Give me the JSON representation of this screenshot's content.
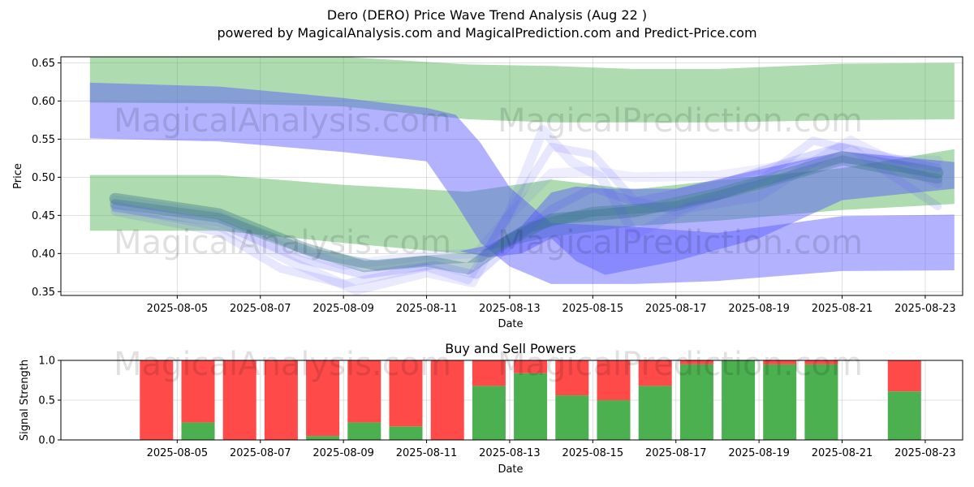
{
  "title": "Dero (DERO) Price Wave Trend Analysis (Aug 22 )",
  "subtitle": "powered by MagicalAnalysis.com and MagicalPrediction.com and Predict-Price.com",
  "watermarks": [
    "MagicalAnalysis.com",
    "MagicalPrediction.com"
  ],
  "colors": {
    "green": "#4caf50",
    "red": "#ff4a4a",
    "blue": "#5555ff",
    "teal": "#2f6f7f",
    "grid": "#b0b0b0"
  },
  "chart_data": [
    {
      "type": "area",
      "name": "price-wave",
      "xlabel": "Date",
      "ylabel": "Price",
      "ylim": [
        0.345,
        0.658
      ],
      "yticks": [
        "0.35",
        "0.40",
        "0.45",
        "0.50",
        "0.55",
        "0.60",
        "0.65"
      ],
      "ytick_values": [
        0.35,
        0.4,
        0.45,
        0.5,
        0.55,
        0.6,
        0.65
      ],
      "xticks": [
        "2025-08-05",
        "2025-08-07",
        "2025-08-09",
        "2025-08-11",
        "2025-08-13",
        "2025-08-15",
        "2025-08-17",
        "2025-08-19",
        "2025-08-21",
        "2025-08-23"
      ],
      "xtick_days": [
        5,
        7,
        9,
        11,
        13,
        15,
        17,
        19,
        21,
        23
      ],
      "xlim_days": [
        2.2,
        23.9
      ],
      "grid": true,
      "bands": [
        {
          "name": "upper-green-band",
          "color": "green",
          "opacity": 0.45,
          "x": [
            2.9,
            6,
            9,
            12,
            14,
            16,
            18,
            21,
            23.7
          ],
          "upper": [
            0.658,
            0.658,
            0.658,
            0.648,
            0.646,
            0.642,
            0.642,
            0.649,
            0.65
          ],
          "lower": [
            0.598,
            0.597,
            0.593,
            0.576,
            0.572,
            0.572,
            0.572,
            0.575,
            0.576
          ]
        },
        {
          "name": "lower-green-band",
          "color": "green",
          "opacity": 0.45,
          "x": [
            2.9,
            6,
            9,
            12,
            14,
            16,
            18,
            21,
            23.7
          ],
          "upper": [
            0.503,
            0.503,
            0.49,
            0.481,
            0.497,
            0.484,
            0.496,
            0.512,
            0.537
          ],
          "lower": [
            0.43,
            0.43,
            0.414,
            0.399,
            0.422,
            0.436,
            0.443,
            0.457,
            0.465
          ]
        },
        {
          "name": "blue-decline-band",
          "color": "blue",
          "opacity": 0.45,
          "x": [
            2.9,
            6,
            9,
            11,
            11.7,
            12.3,
            13,
            14,
            16,
            18,
            21,
            23.7
          ],
          "upper": [
            0.624,
            0.619,
            0.604,
            0.591,
            0.582,
            0.545,
            0.487,
            0.44,
            0.435,
            0.427,
            0.449,
            0.451
          ],
          "lower": [
            0.551,
            0.547,
            0.533,
            0.521,
            0.466,
            0.414,
            0.383,
            0.36,
            0.36,
            0.364,
            0.377,
            0.378
          ]
        },
        {
          "name": "blue-rise-band",
          "color": "blue",
          "opacity": 0.45,
          "x": [
            11.8,
            12.5,
            13.3,
            14,
            14.6,
            15.3,
            17,
            19,
            21,
            23.7
          ],
          "upper": [
            0.403,
            0.411,
            0.437,
            0.48,
            0.488,
            0.485,
            0.485,
            0.51,
            0.534,
            0.52
          ],
          "lower": [
            0.403,
            0.395,
            0.4,
            0.42,
            0.39,
            0.372,
            0.39,
            0.42,
            0.47,
            0.485
          ]
        }
      ],
      "waves": [
        {
          "color": "teal",
          "opacity": 0.35,
          "width": 14,
          "points": [
            [
              3.5,
              0.472
            ],
            [
              6,
              0.452
            ],
            [
              8,
              0.408
            ],
            [
              9.5,
              0.383
            ],
            [
              11,
              0.39
            ],
            [
              12,
              0.38
            ],
            [
              13,
              0.418
            ],
            [
              14,
              0.445
            ],
            [
              16,
              0.455
            ],
            [
              18,
              0.478
            ],
            [
              20,
              0.51
            ],
            [
              21,
              0.527
            ],
            [
              23.3,
              0.506
            ]
          ]
        },
        {
          "color": "teal",
          "opacity": 0.3,
          "width": 12,
          "points": [
            [
              3.5,
              0.465
            ],
            [
              6,
              0.447
            ],
            [
              8.3,
              0.4
            ],
            [
              9.8,
              0.384
            ],
            [
              11.2,
              0.392
            ],
            [
              12.3,
              0.395
            ],
            [
              13.5,
              0.435
            ],
            [
              15,
              0.455
            ],
            [
              17,
              0.462
            ],
            [
              19,
              0.49
            ],
            [
              21,
              0.522
            ],
            [
              23.3,
              0.498
            ]
          ]
        },
        {
          "color": "blue",
          "opacity": 0.2,
          "width": 10,
          "points": [
            [
              3.5,
              0.46
            ],
            [
              6,
              0.44
            ],
            [
              8,
              0.392
            ],
            [
              9.5,
              0.372
            ],
            [
              11.2,
              0.385
            ],
            [
              12.2,
              0.372
            ],
            [
              13.4,
              0.43
            ],
            [
              14,
              0.458
            ],
            [
              15,
              0.486
            ],
            [
              16,
              0.468
            ],
            [
              18,
              0.49
            ],
            [
              20,
              0.525
            ],
            [
              21,
              0.54
            ],
            [
              23.3,
              0.512
            ]
          ]
        },
        {
          "color": "blue",
          "opacity": 0.15,
          "width": 10,
          "points": [
            [
              3.5,
              0.455
            ],
            [
              6,
              0.428
            ],
            [
              7.5,
              0.38
            ],
            [
              9,
              0.36
            ],
            [
              11,
              0.382
            ],
            [
              12,
              0.365
            ],
            [
              13.3,
              0.48
            ],
            [
              14,
              0.54
            ],
            [
              15,
              0.53
            ],
            [
              16,
              0.47
            ],
            [
              17,
              0.455
            ],
            [
              19,
              0.495
            ],
            [
              20.3,
              0.548
            ],
            [
              21.3,
              0.535
            ],
            [
              23.3,
              0.462
            ]
          ]
        },
        {
          "color": "blue",
          "opacity": 0.12,
          "width": 12,
          "points": [
            [
              3.5,
              0.462
            ],
            [
              6,
              0.436
            ],
            [
              7.8,
              0.388
            ],
            [
              9.3,
              0.352
            ],
            [
              11,
              0.375
            ],
            [
              12.1,
              0.362
            ],
            [
              13,
              0.455
            ],
            [
              13.8,
              0.562
            ],
            [
              14.5,
              0.52
            ],
            [
              15.2,
              0.5
            ],
            [
              16,
              0.425
            ],
            [
              17.3,
              0.46
            ],
            [
              19,
              0.475
            ],
            [
              20.3,
              0.52
            ],
            [
              21.2,
              0.548
            ],
            [
              23.3,
              0.492
            ]
          ]
        },
        {
          "color": "blue",
          "opacity": 0.1,
          "width": 12,
          "points": [
            [
              3.5,
              0.47
            ],
            [
              6,
              0.45
            ],
            [
              7.5,
              0.41
            ],
            [
              9,
              0.385
            ],
            [
              11,
              0.397
            ],
            [
              12.2,
              0.4
            ],
            [
              13,
              0.45
            ],
            [
              14,
              0.505
            ],
            [
              15,
              0.508
            ],
            [
              16,
              0.5
            ],
            [
              18,
              0.502
            ],
            [
              20.2,
              0.52
            ],
            [
              21,
              0.524
            ],
            [
              23.3,
              0.522
            ]
          ]
        }
      ]
    },
    {
      "type": "bar",
      "name": "buy-sell-powers",
      "title": "Buy and Sell Powers",
      "xlabel": "Date",
      "ylabel": "Signal Strength",
      "ylim": [
        0,
        1.0
      ],
      "yticks": [
        "0.0",
        "0.5",
        "1.0"
      ],
      "ytick_values": [
        0,
        0.5,
        1.0
      ],
      "xticks": [
        "2025-08-05",
        "2025-08-07",
        "2025-08-09",
        "2025-08-11",
        "2025-08-13",
        "2025-08-15",
        "2025-08-17",
        "2025-08-19",
        "2025-08-21",
        "2025-08-23"
      ],
      "xtick_days": [
        5,
        7,
        9,
        11,
        13,
        15,
        17,
        19,
        21,
        23
      ],
      "xlim_days": [
        2.2,
        23.9
      ],
      "grid": true,
      "categories": [
        "2025-08-04",
        "2025-08-05",
        "2025-08-06",
        "2025-08-07",
        "2025-08-08",
        "2025-08-09",
        "2025-08-10",
        "2025-08-11",
        "2025-08-12",
        "2025-08-13",
        "2025-08-14",
        "2025-08-15",
        "2025-08-16",
        "2025-08-17",
        "2025-08-18",
        "2025-08-19",
        "2025-08-20",
        "2025-08-23"
      ],
      "bar_days": [
        4.5,
        5.5,
        6.5,
        7.5,
        8.5,
        9.5,
        10.5,
        11.5,
        12.5,
        13.5,
        14.5,
        15.5,
        16.5,
        17.5,
        18.5,
        19.5,
        20.5,
        22.5
      ],
      "series": [
        {
          "name": "Buy",
          "color": "green",
          "values": [
            0.0,
            0.22,
            0.0,
            0.0,
            0.05,
            0.22,
            0.17,
            0.0,
            0.68,
            0.84,
            0.56,
            0.5,
            0.68,
            0.95,
            1.0,
            0.95,
            0.95,
            0.61
          ]
        },
        {
          "name": "Sell",
          "color": "red",
          "values": [
            1.0,
            0.78,
            1.0,
            1.0,
            0.95,
            0.78,
            0.83,
            1.0,
            0.32,
            0.16,
            0.44,
            0.5,
            0.32,
            0.05,
            0.0,
            0.05,
            0.05,
            0.39
          ]
        }
      ]
    }
  ]
}
